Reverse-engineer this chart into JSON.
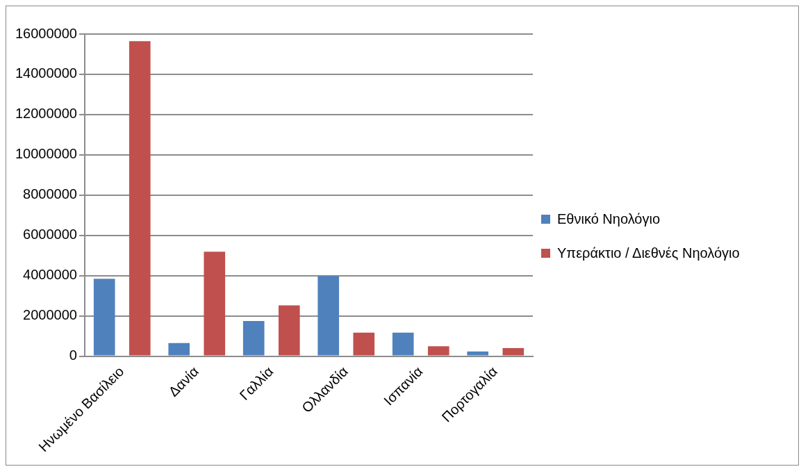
{
  "chart_data": {
    "type": "bar",
    "categories": [
      "Ηνωμένο Βασίλειο",
      "Δανία",
      "Γαλλία",
      "Ολλανδία",
      "Ισπανία",
      "Πορτογαλία"
    ],
    "series": [
      {
        "name": "Εθνικό Νηολόγιο",
        "color": "#4f81bd",
        "values": [
          3840000,
          650000,
          1740000,
          3980000,
          1170000,
          230000
        ]
      },
      {
        "name": "Υπεράκτιο / Διεθνές Νηολόγιο",
        "color": "#c0504d",
        "values": [
          15650000,
          5190000,
          2520000,
          1170000,
          490000,
          400000
        ]
      }
    ],
    "ylim": [
      0,
      16000000
    ],
    "yticks": [
      0,
      2000000,
      4000000,
      6000000,
      8000000,
      10000000,
      12000000,
      14000000,
      16000000
    ],
    "grid": "y",
    "legend": "right"
  }
}
